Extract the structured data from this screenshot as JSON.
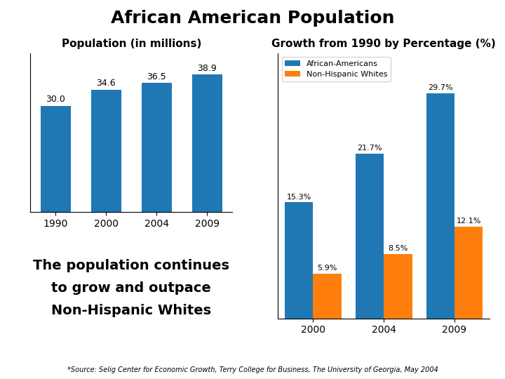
{
  "title": "African American Population",
  "annotations": [
    "The population continues",
    "to grow and outpace",
    "Non-Hispanic Whites"
  ],
  "source": "*Source: Selig Center for Economic Growth, Terry College for Business, The University of Georgia, May 2004",
  "chart_data": [
    {
      "type": "bar",
      "title": "Population (in millions)",
      "categories": [
        "1990",
        "2000",
        "2004",
        "2009"
      ],
      "values": [
        30.0,
        34.6,
        36.5,
        38.9
      ],
      "ylim": [
        0,
        45
      ],
      "data_labels": true,
      "tick_labels": "x"
    },
    {
      "type": "bar",
      "title": "Growth from 1990 by Percentage (%)",
      "categories": [
        "2000",
        "2004",
        "2009"
      ],
      "series": [
        {
          "name": "African-Americans",
          "values": [
            15.3,
            21.7,
            29.7
          ],
          "value_labels": [
            "15.3%",
            "21.7%",
            "29.7%"
          ]
        },
        {
          "name": "Non-Hispanic Whites",
          "values": [
            5.9,
            8.5,
            12.1
          ],
          "value_labels": [
            "5.9%",
            "8.5%",
            "12.1%"
          ]
        }
      ],
      "ylim": [
        0,
        35
      ],
      "data_labels": true,
      "tick_labels": "x",
      "legend": "upper left"
    }
  ]
}
